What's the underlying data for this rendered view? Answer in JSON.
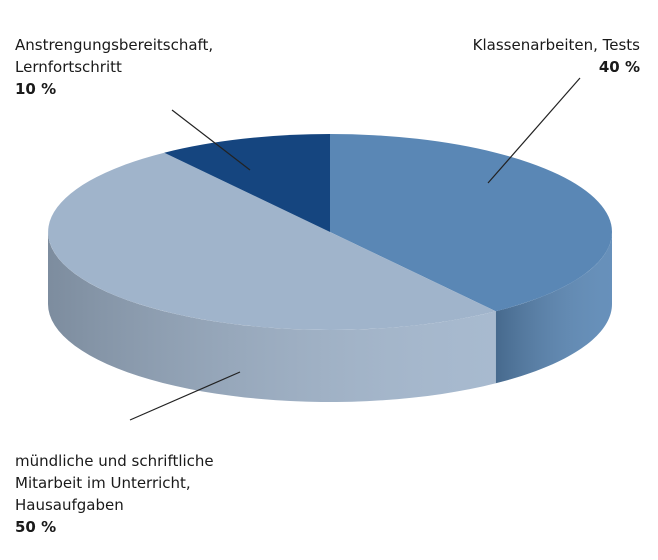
{
  "chart_data": {
    "type": "pie",
    "categories": [
      "Klassenarbeiten, Tests",
      "mündliche und schriftliche\nMitarbeit im Unterricht,\nHausaufgaben",
      "Anstrengungsbereitschaft,\nLernfortschritt"
    ],
    "values": [
      40,
      50,
      10
    ],
    "value_labels": [
      "40 %",
      "50 %",
      "10 %"
    ],
    "colors": [
      "#5a87b5",
      "#a0b4cb",
      "#15457f"
    ]
  }
}
